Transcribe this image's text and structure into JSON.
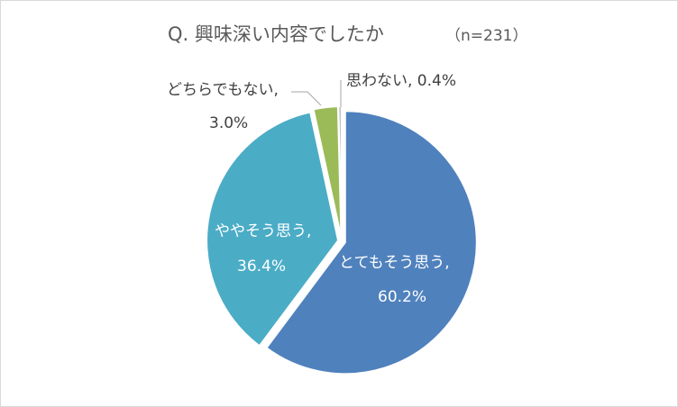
{
  "chart_data": {
    "type": "pie",
    "title": "Q. 興味深い内容でしたか",
    "subtitle": "（n=231）",
    "categories": [
      "とてもそう思う",
      "ややそう思う",
      "どちらでもない",
      "思わない"
    ],
    "values": [
      60.2,
      36.4,
      3.0,
      0.4
    ],
    "unit": "%",
    "colors": [
      "#4f81bd",
      "#4bacc6",
      "#9bbb59",
      "#c0c0c0"
    ],
    "start_angle_deg": 0,
    "direction": "clockwise",
    "exploded": true,
    "data_labels": [
      {
        "category": "とてもそう思う,",
        "value": "60.2%"
      },
      {
        "category": "ややそう思う,",
        "value": "36.4%"
      },
      {
        "category": "どちらでもない,",
        "value": "3.0%"
      },
      {
        "category": "思わない, 0.4%",
        "value": ""
      }
    ],
    "legend": "none"
  }
}
